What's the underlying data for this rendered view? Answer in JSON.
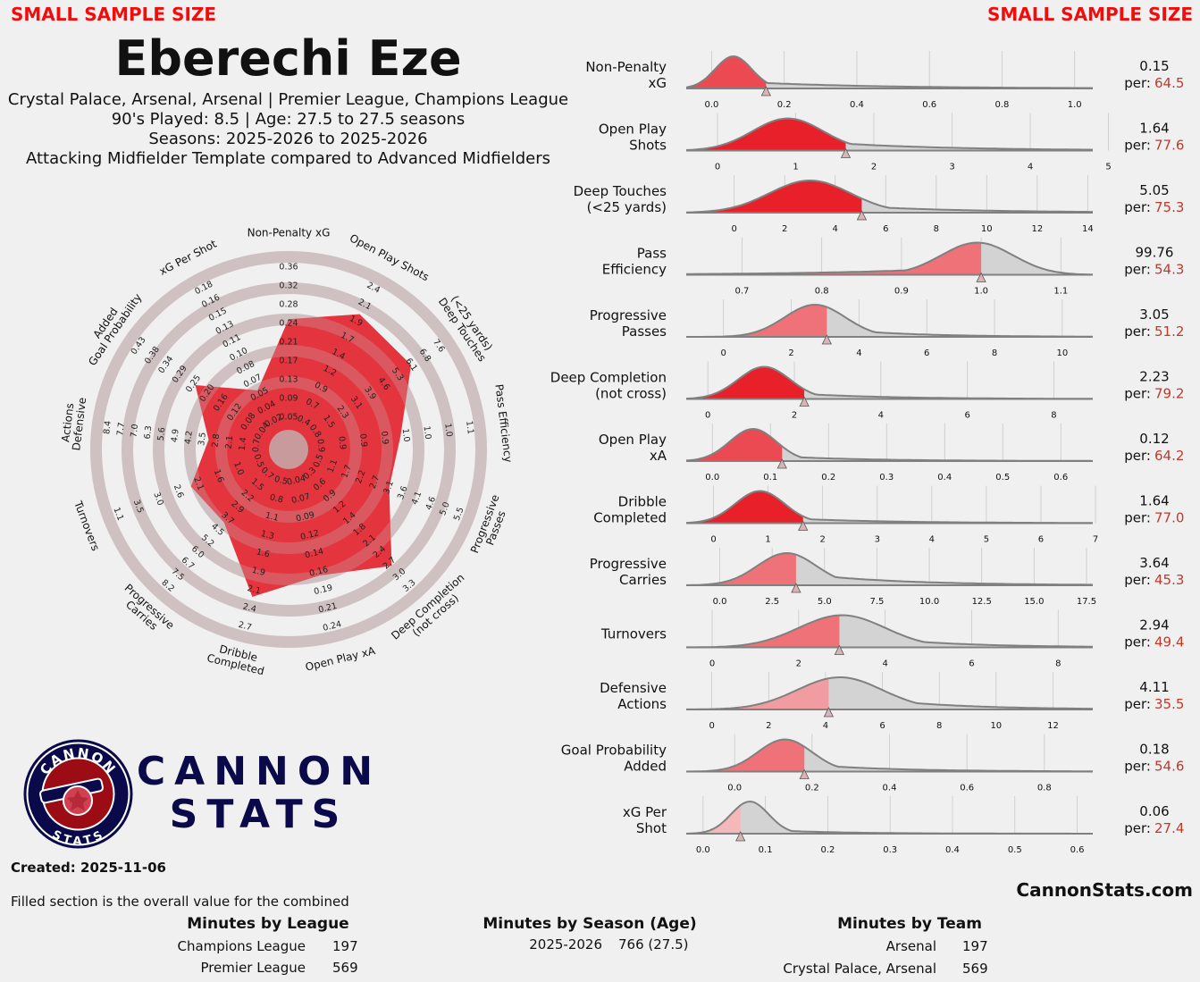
{
  "header": {
    "warning_left": "SMALL SAMPLE SIZE",
    "warning_right": "SMALL SAMPLE SIZE",
    "player_name": "Eberechi Eze",
    "line1": "Crystal Palace, Arsenal, Arsenal | Premier League, Champions League",
    "line2": "90's Played: 8.5 | Age: 27.5 to 27.5 seasons",
    "line3": "Seasons: 2025-2026 to 2025-2026",
    "line4": "Attacking Midfielder Template compared to Advanced Midfielders"
  },
  "logo": {
    "ring_top": "CANNON",
    "ring_bottom": "STATS",
    "word1": "CANNON",
    "word2": "STATS"
  },
  "footer": {
    "created": "Created: 2025-11-06",
    "filled_note": "Filled section is the overall value for the combined",
    "site": "CannonStats.com",
    "league_title": "Minutes by League",
    "league_rows": [
      {
        "label": "Champions League",
        "value": "197"
      },
      {
        "label": "Premier League",
        "value": "569"
      }
    ],
    "season_title": "Minutes by Season (Age)",
    "season_rows": [
      {
        "label": "2025-2026",
        "value": "766 (27.5)"
      }
    ],
    "team_title": "Minutes by Team",
    "team_rows": [
      {
        "label": "Arsenal",
        "value": "197"
      },
      {
        "label": "Crystal Palace, Arsenal",
        "value": "569"
      }
    ]
  },
  "colors": {
    "red": "#e8202a",
    "grey_fill": "#d3d3d3",
    "grey_line": "#808080",
    "pct_red": "#c0392b",
    "navy": "#0a0a4a",
    "warn": "#f20d0d"
  },
  "chart_data": [
    {
      "type": "radar",
      "metrics": [
        {
          "label": "Non-Penalty xG",
          "ticks": [
            "0.05",
            "0.09",
            "0.13",
            "0.17",
            "0.21",
            "0.24",
            "0.28",
            "0.32",
            "0.36"
          ],
          "percentile": 64.5
        },
        {
          "label": "Open Play Shots",
          "ticks": [
            "0.4",
            "0.7",
            "0.9",
            "1.2",
            "1.4",
            "1.7",
            "1.9",
            "2.1",
            "2.4"
          ],
          "percentile": 77.6
        },
        {
          "label": "Deep Touches (<25 yards)",
          "ticks": [
            "0.8",
            "1.5",
            "2.3",
            "3.1",
            "3.9",
            "4.6",
            "5.3",
            "6.1",
            "6.8",
            "7.6"
          ],
          "percentile": 75.3
        },
        {
          "label": "Pass Efficiency",
          "ticks": [
            "0.9",
            "0.9",
            "0.9",
            "0.9",
            "1.0",
            "1.0",
            "1.0",
            "1.1"
          ],
          "percentile": 54.3
        },
        {
          "label": "Progressive Passes",
          "ticks": [
            "0.5",
            "1.1",
            "1.7",
            "2.2",
            "2.7",
            "3.1",
            "3.6",
            "4.1",
            "4.6",
            "5.0",
            "5.5"
          ],
          "percentile": 51.2
        },
        {
          "label": "Deep Completion (not cross)",
          "ticks": [
            "0.3",
            "0.6",
            "0.9",
            "1.2",
            "1.4",
            "1.8",
            "2.1",
            "2.4",
            "2.7",
            "3.0",
            "3.3"
          ],
          "percentile": 79.2
        },
        {
          "label": "Open Play xA",
          "ticks": [
            "0.04",
            "0.07",
            "0.09",
            "0.12",
            "0.14",
            "0.16",
            "0.19",
            "0.21",
            "0.24"
          ],
          "percentile": 64.2
        },
        {
          "label": "Dribble Completed",
          "ticks": [
            "0.5",
            "0.8",
            "1.1",
            "1.3",
            "1.6",
            "1.9",
            "2.1",
            "2.4",
            "2.7"
          ],
          "percentile": 77.0
        },
        {
          "label": "Progressive Carries",
          "ticks": [
            "0.7",
            "1.5",
            "2.2",
            "2.9",
            "3.7",
            "4.5",
            "5.2",
            "6.0",
            "6.7",
            "7.5",
            "8.2"
          ],
          "percentile": 45.3
        },
        {
          "label": "Turnovers",
          "ticks": [
            "0.5",
            "1.0",
            "1.6",
            "2.1",
            "2.6",
            "3.0",
            "3.5",
            "1.1"
          ],
          "percentile": 49.4
        },
        {
          "label": "Defensive Actions",
          "ticks": [
            "0.7",
            "1.4",
            "2.1",
            "2.8",
            "3.5",
            "4.2",
            "4.9",
            "5.6",
            "6.3",
            "7.0",
            "7.7",
            "8.4"
          ],
          "percentile": 35.5
        },
        {
          "label": "Goal Probability Added",
          "ticks": [
            "0.04",
            "0.08",
            "0.12",
            "0.16",
            "0.20",
            "0.25",
            "0.29",
            "0.34",
            "0.38",
            "0.43"
          ],
          "percentile": 54.6
        },
        {
          "label": "xG Per Shot",
          "ticks": [
            "0.02",
            "0.04",
            "0.05",
            "0.07",
            "0.08",
            "0.10",
            "0.11",
            "0.13",
            "0.15",
            "0.16",
            "0.18"
          ],
          "percentile": 27.4
        }
      ]
    },
    {
      "type": "density",
      "metrics": [
        {
          "label1": "Non-Penalty",
          "label2": "xG",
          "value": "0.15",
          "pct": "64.5",
          "pct_num": 64.5,
          "xmin": -0.07,
          "xmax": 1.05,
          "ticks": [
            0.0,
            0.2,
            0.4,
            0.6,
            0.8,
            1.0
          ],
          "tick_labels": [
            "0.0",
            "0.2",
            "0.4",
            "0.6",
            "0.8",
            "1.0"
          ],
          "player": 0.15,
          "peak": 0.06,
          "spread": 0.05,
          "tail": 0.22,
          "tail_w": 0.35
        },
        {
          "label1": "Open Play",
          "label2": "Shots",
          "value": "1.64",
          "pct": "77.6",
          "pct_num": 77.6,
          "xmin": -0.4,
          "xmax": 4.8,
          "ticks": [
            0,
            1,
            2,
            3,
            4,
            5
          ],
          "tick_labels": [
            "0",
            "1",
            "2",
            "3",
            "4",
            "5"
          ],
          "player": 1.64,
          "peak": 0.9,
          "spread": 0.45,
          "tail": 0.35,
          "tail_w": 1.5
        },
        {
          "label1": "Deep Touches",
          "label2": "(<25 yards)",
          "value": "5.05",
          "pct": "75.3",
          "pct_num": 75.3,
          "xmin": -1.9,
          "xmax": 14.2,
          "ticks": [
            0,
            2,
            4,
            6,
            8,
            10,
            12,
            14
          ],
          "tick_labels": [
            "0",
            "2",
            "4",
            "6",
            "8",
            "10",
            "12",
            "14"
          ],
          "player": 5.05,
          "peak": 3.0,
          "spread": 1.6,
          "tail": 0.3,
          "tail_w": 4.5
        },
        {
          "label1": "Pass",
          "label2": "Efficiency",
          "value": "99.76",
          "pct": "54.3",
          "pct_num": 54.3,
          "xmin": 0.63,
          "xmax": 1.14,
          "ticks": [
            0.7,
            0.8,
            0.9,
            1.0,
            1.1
          ],
          "tick_labels": [
            "0.7",
            "0.8",
            "0.9",
            "1.0",
            "1.1"
          ],
          "player": 1.0,
          "peak": 0.995,
          "spread": 0.045,
          "tail": 0.25,
          "tail_w": -0.15
        },
        {
          "label1": "Progressive",
          "label2": "Passes",
          "value": "3.05",
          "pct": "51.2",
          "pct_num": 51.2,
          "xmin": -1.1,
          "xmax": 10.9,
          "ticks": [
            0,
            2,
            4,
            6,
            8,
            10
          ],
          "tick_labels": [
            "0",
            "2",
            "4",
            "6",
            "8",
            "10"
          ],
          "player": 3.05,
          "peak": 2.7,
          "spread": 0.9,
          "tail": 0.32,
          "tail_w": 2.2
        },
        {
          "label1": "Deep Completion",
          "label2": "(not cross)",
          "value": "2.23",
          "pct": "79.2",
          "pct_num": 79.2,
          "xmin": -0.5,
          "xmax": 8.9,
          "ticks": [
            0,
            2,
            4,
            6,
            8
          ],
          "tick_labels": [
            "0",
            "2",
            "4",
            "6",
            "8"
          ],
          "player": 2.23,
          "peak": 1.3,
          "spread": 0.6,
          "tail": 0.25,
          "tail_w": 2.0
        },
        {
          "label1": "Open Play",
          "label2": "xA",
          "value": "0.12",
          "pct": "64.2",
          "pct_num": 64.2,
          "xmin": -0.045,
          "xmax": 0.655,
          "ticks": [
            0.0,
            0.1,
            0.2,
            0.3,
            0.4,
            0.5,
            0.6
          ],
          "tick_labels": [
            "0.0",
            "0.1",
            "0.2",
            "0.3",
            "0.4",
            "0.5",
            "0.6"
          ],
          "player": 0.12,
          "peak": 0.07,
          "spread": 0.04,
          "tail": 0.2,
          "tail_w": 0.15
        },
        {
          "label1": "Dribble",
          "label2": "Completed",
          "value": "1.64",
          "pct": "77.0",
          "pct_num": 77.0,
          "xmin": -0.5,
          "xmax": 6.95,
          "ticks": [
            0,
            1,
            2,
            3,
            4,
            5,
            6,
            7
          ],
          "tick_labels": [
            "0",
            "1",
            "2",
            "3",
            "4",
            "5",
            "6",
            "7"
          ],
          "player": 1.64,
          "peak": 0.85,
          "spread": 0.45,
          "tail": 0.2,
          "tail_w": 1.8
        },
        {
          "label1": "Progressive",
          "label2": "Carries",
          "value": "3.64",
          "pct": "45.3",
          "pct_num": 45.3,
          "xmin": -1.6,
          "xmax": 17.8,
          "ticks": [
            0,
            2.5,
            5,
            7.5,
            10,
            12.5,
            15,
            17.5
          ],
          "tick_labels": [
            "0.0",
            "2.5",
            "5.0",
            "7.5",
            "10.0",
            "12.5",
            "15.0",
            "17.5"
          ],
          "player": 3.64,
          "peak": 3.2,
          "spread": 1.4,
          "tail": 0.42,
          "tail_w": 4.5
        },
        {
          "label1": "Turnovers",
          "label2": "",
          "value": "2.94",
          "pct": "49.4",
          "pct_num": 49.4,
          "xmin": -0.6,
          "xmax": 8.8,
          "ticks": [
            0,
            2,
            4,
            6,
            8
          ],
          "tick_labels": [
            "0",
            "2",
            "4",
            "6",
            "8"
          ],
          "player": 2.94,
          "peak": 3.0,
          "spread": 1.0,
          "tail": 0.45,
          "tail_w": 1.9
        },
        {
          "label1": "Defensive",
          "label2": "Actions",
          "value": "4.11",
          "pct": "35.5",
          "pct_num": 35.5,
          "xmin": -0.9,
          "xmax": 13.4,
          "ticks": [
            0,
            2,
            4,
            6,
            8,
            10,
            12
          ],
          "tick_labels": [
            "0",
            "2",
            "4",
            "6",
            "8",
            "10",
            "12"
          ],
          "player": 4.11,
          "peak": 4.5,
          "spread": 1.5,
          "tail": 0.5,
          "tail_w": 2.9
        },
        {
          "label1": "Goal Probability",
          "label2": "Added",
          "value": "0.18",
          "pct": "54.6",
          "pct_num": 54.6,
          "xmin": -0.125,
          "xmax": 0.925,
          "ticks": [
            0.0,
            0.2,
            0.4,
            0.6,
            0.8
          ],
          "tick_labels": [
            "0.0",
            "0.2",
            "0.4",
            "0.6",
            "0.8"
          ],
          "player": 0.18,
          "peak": 0.13,
          "spread": 0.07,
          "tail": 0.28,
          "tail_w": 0.22
        },
        {
          "label1": "xG Per",
          "label2": "Shot",
          "value": "0.06",
          "pct": "27.4",
          "pct_num": 27.4,
          "xmin": -0.027,
          "xmax": 0.625,
          "ticks": [
            0.0,
            0.1,
            0.2,
            0.3,
            0.4,
            0.5,
            0.6
          ],
          "tick_labels": [
            "0.0",
            "0.1",
            "0.2",
            "0.3",
            "0.4",
            "0.5",
            "0.6"
          ],
          "player": 0.06,
          "peak": 0.075,
          "spread": 0.03,
          "tail": 0.15,
          "tail_w": 0.11
        }
      ]
    }
  ]
}
